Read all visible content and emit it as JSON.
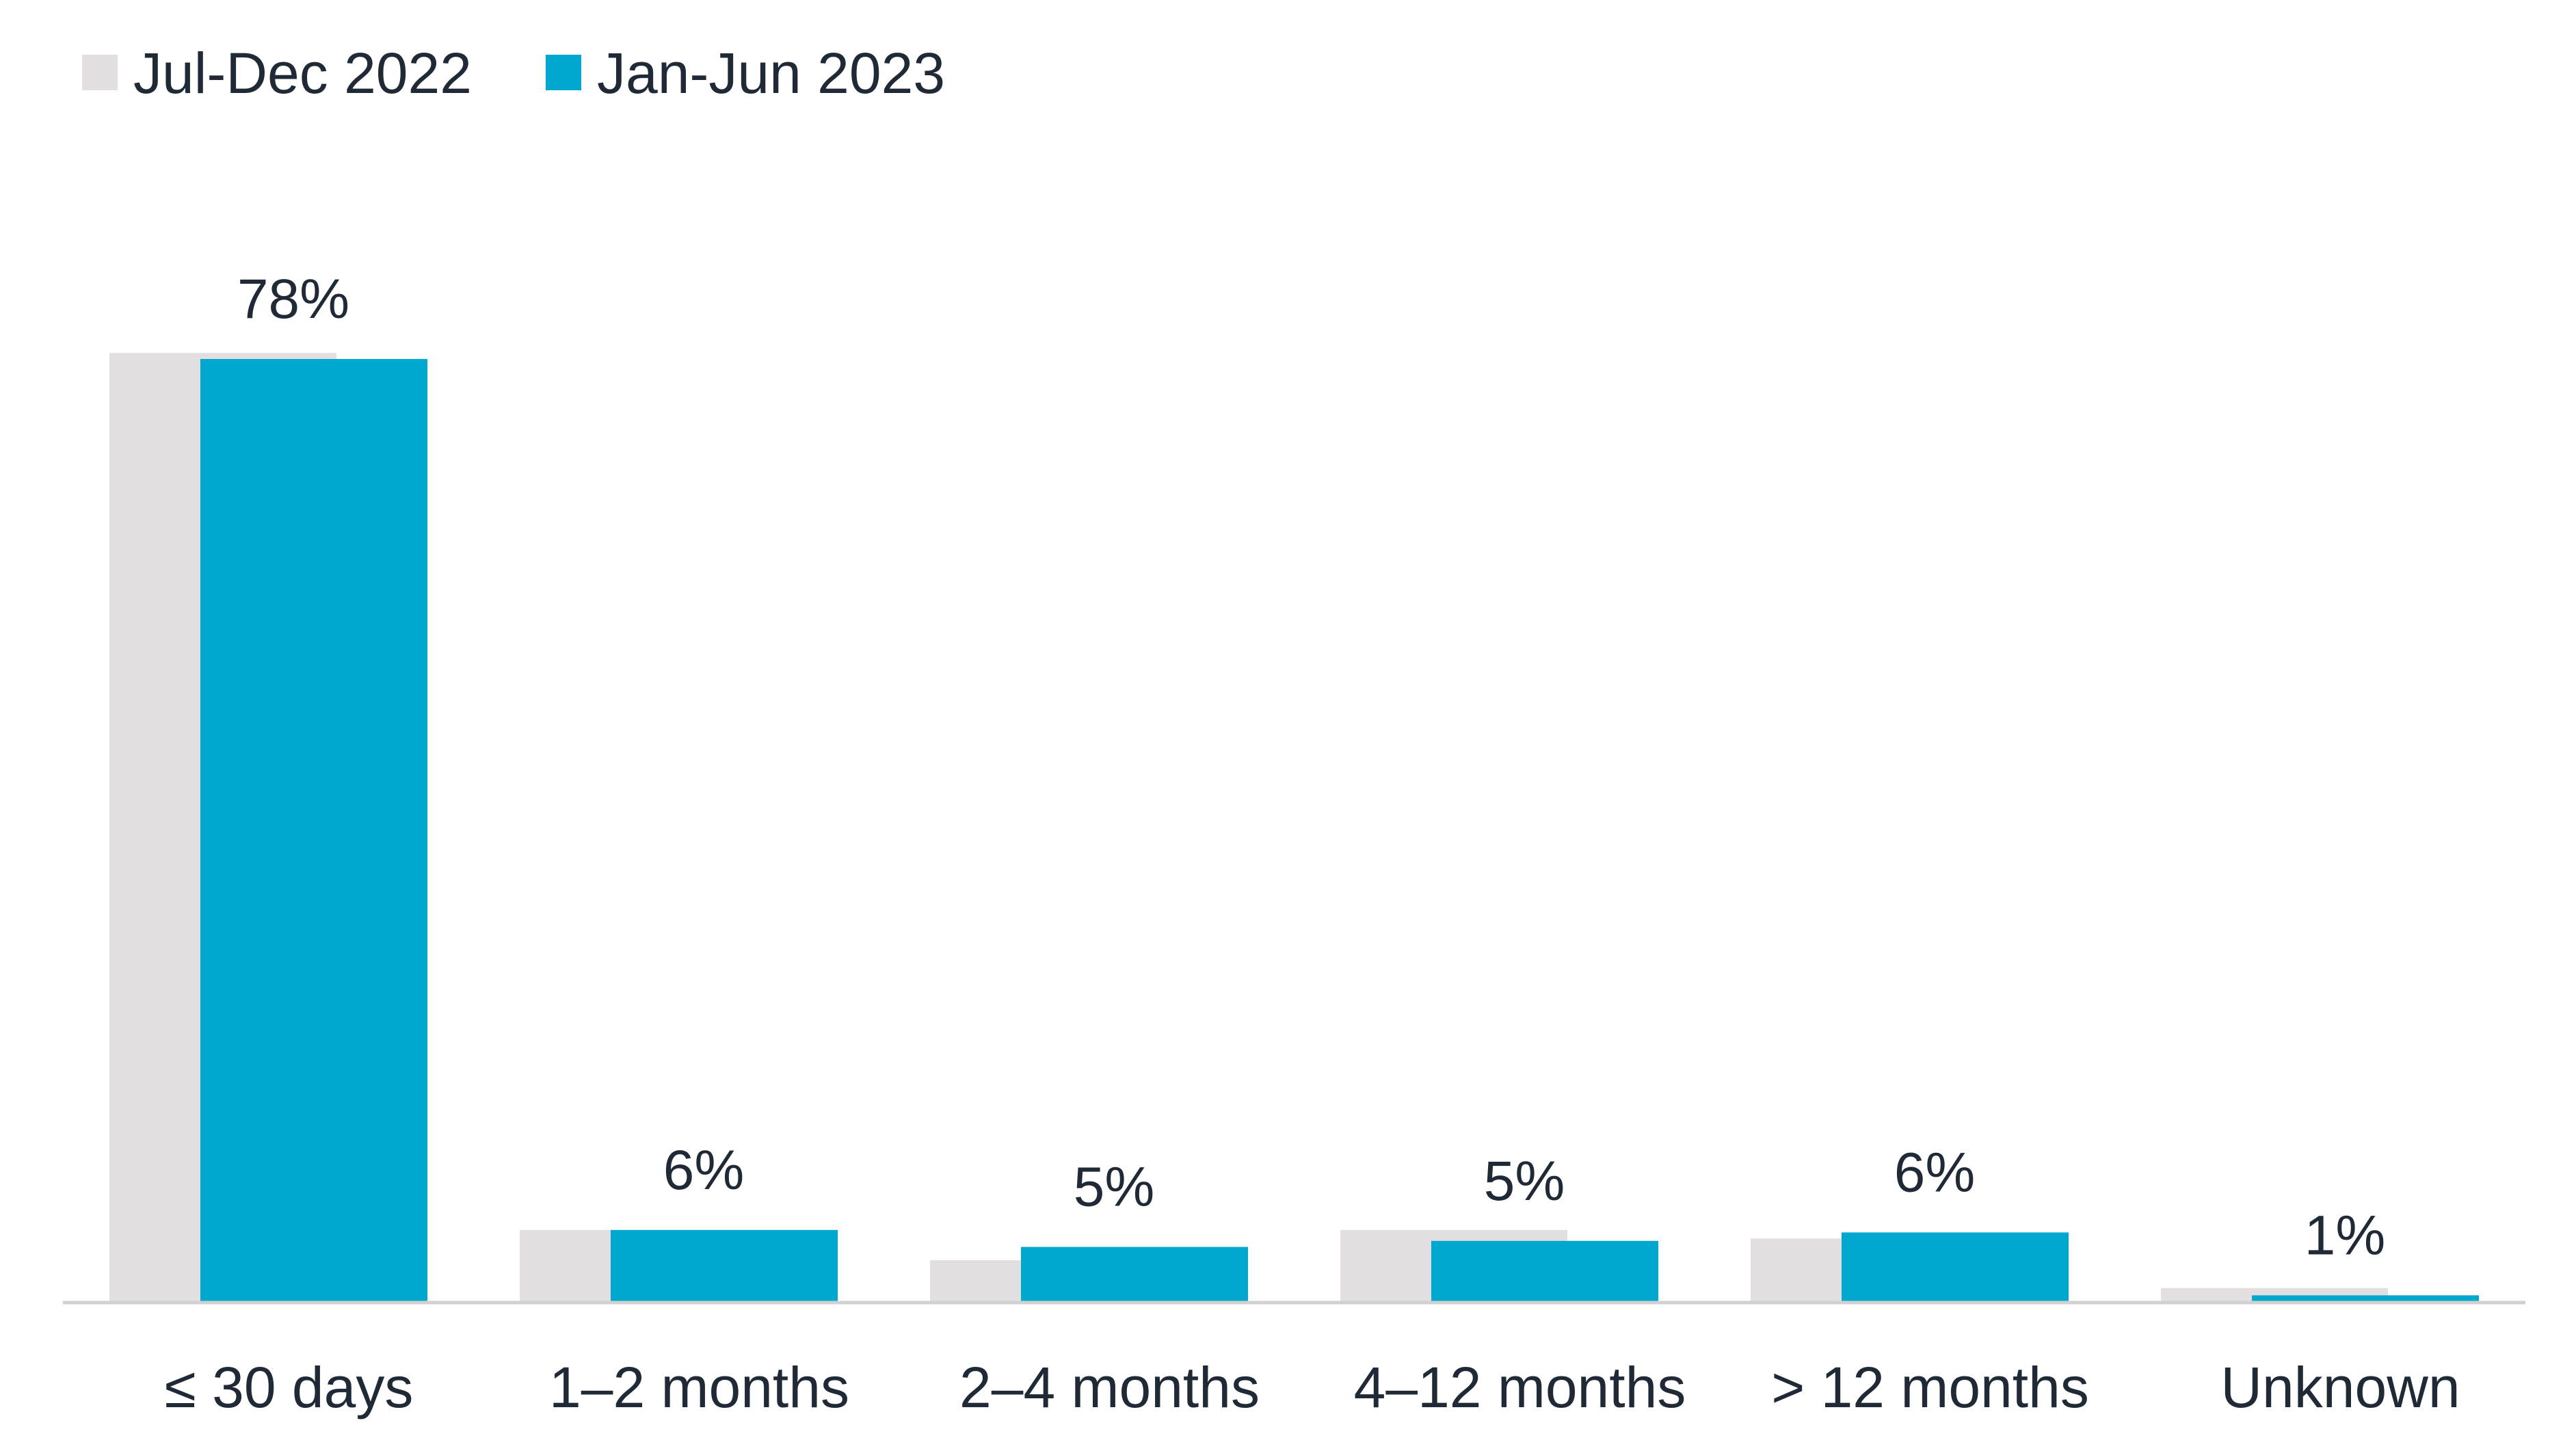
{
  "colors": {
    "series_1": "#e3dfe0",
    "series_2": "#00a8cf",
    "axis": "#d0d0d0",
    "text": "#1f2a36"
  },
  "chart_data": {
    "type": "bar",
    "categories": [
      "≤ 30 days",
      "1–2 months",
      "2–4 months",
      "4–12 months",
      "> 12 months",
      "Unknown"
    ],
    "series": [
      {
        "name": "Jul-Dec 2022",
        "values": [
          78.5,
          6,
          3.5,
          6,
          5.3,
          1.2
        ]
      },
      {
        "name": "Jan-Jun 2023",
        "values": [
          78,
          6,
          4.6,
          5.1,
          5.8,
          0.6
        ]
      }
    ],
    "data_labels": [
      "78%",
      "6%",
      "5%",
      "5%",
      "6%",
      "1%"
    ],
    "ylim": [
      0,
      80
    ],
    "grid": false,
    "legend_position": "top-left"
  }
}
